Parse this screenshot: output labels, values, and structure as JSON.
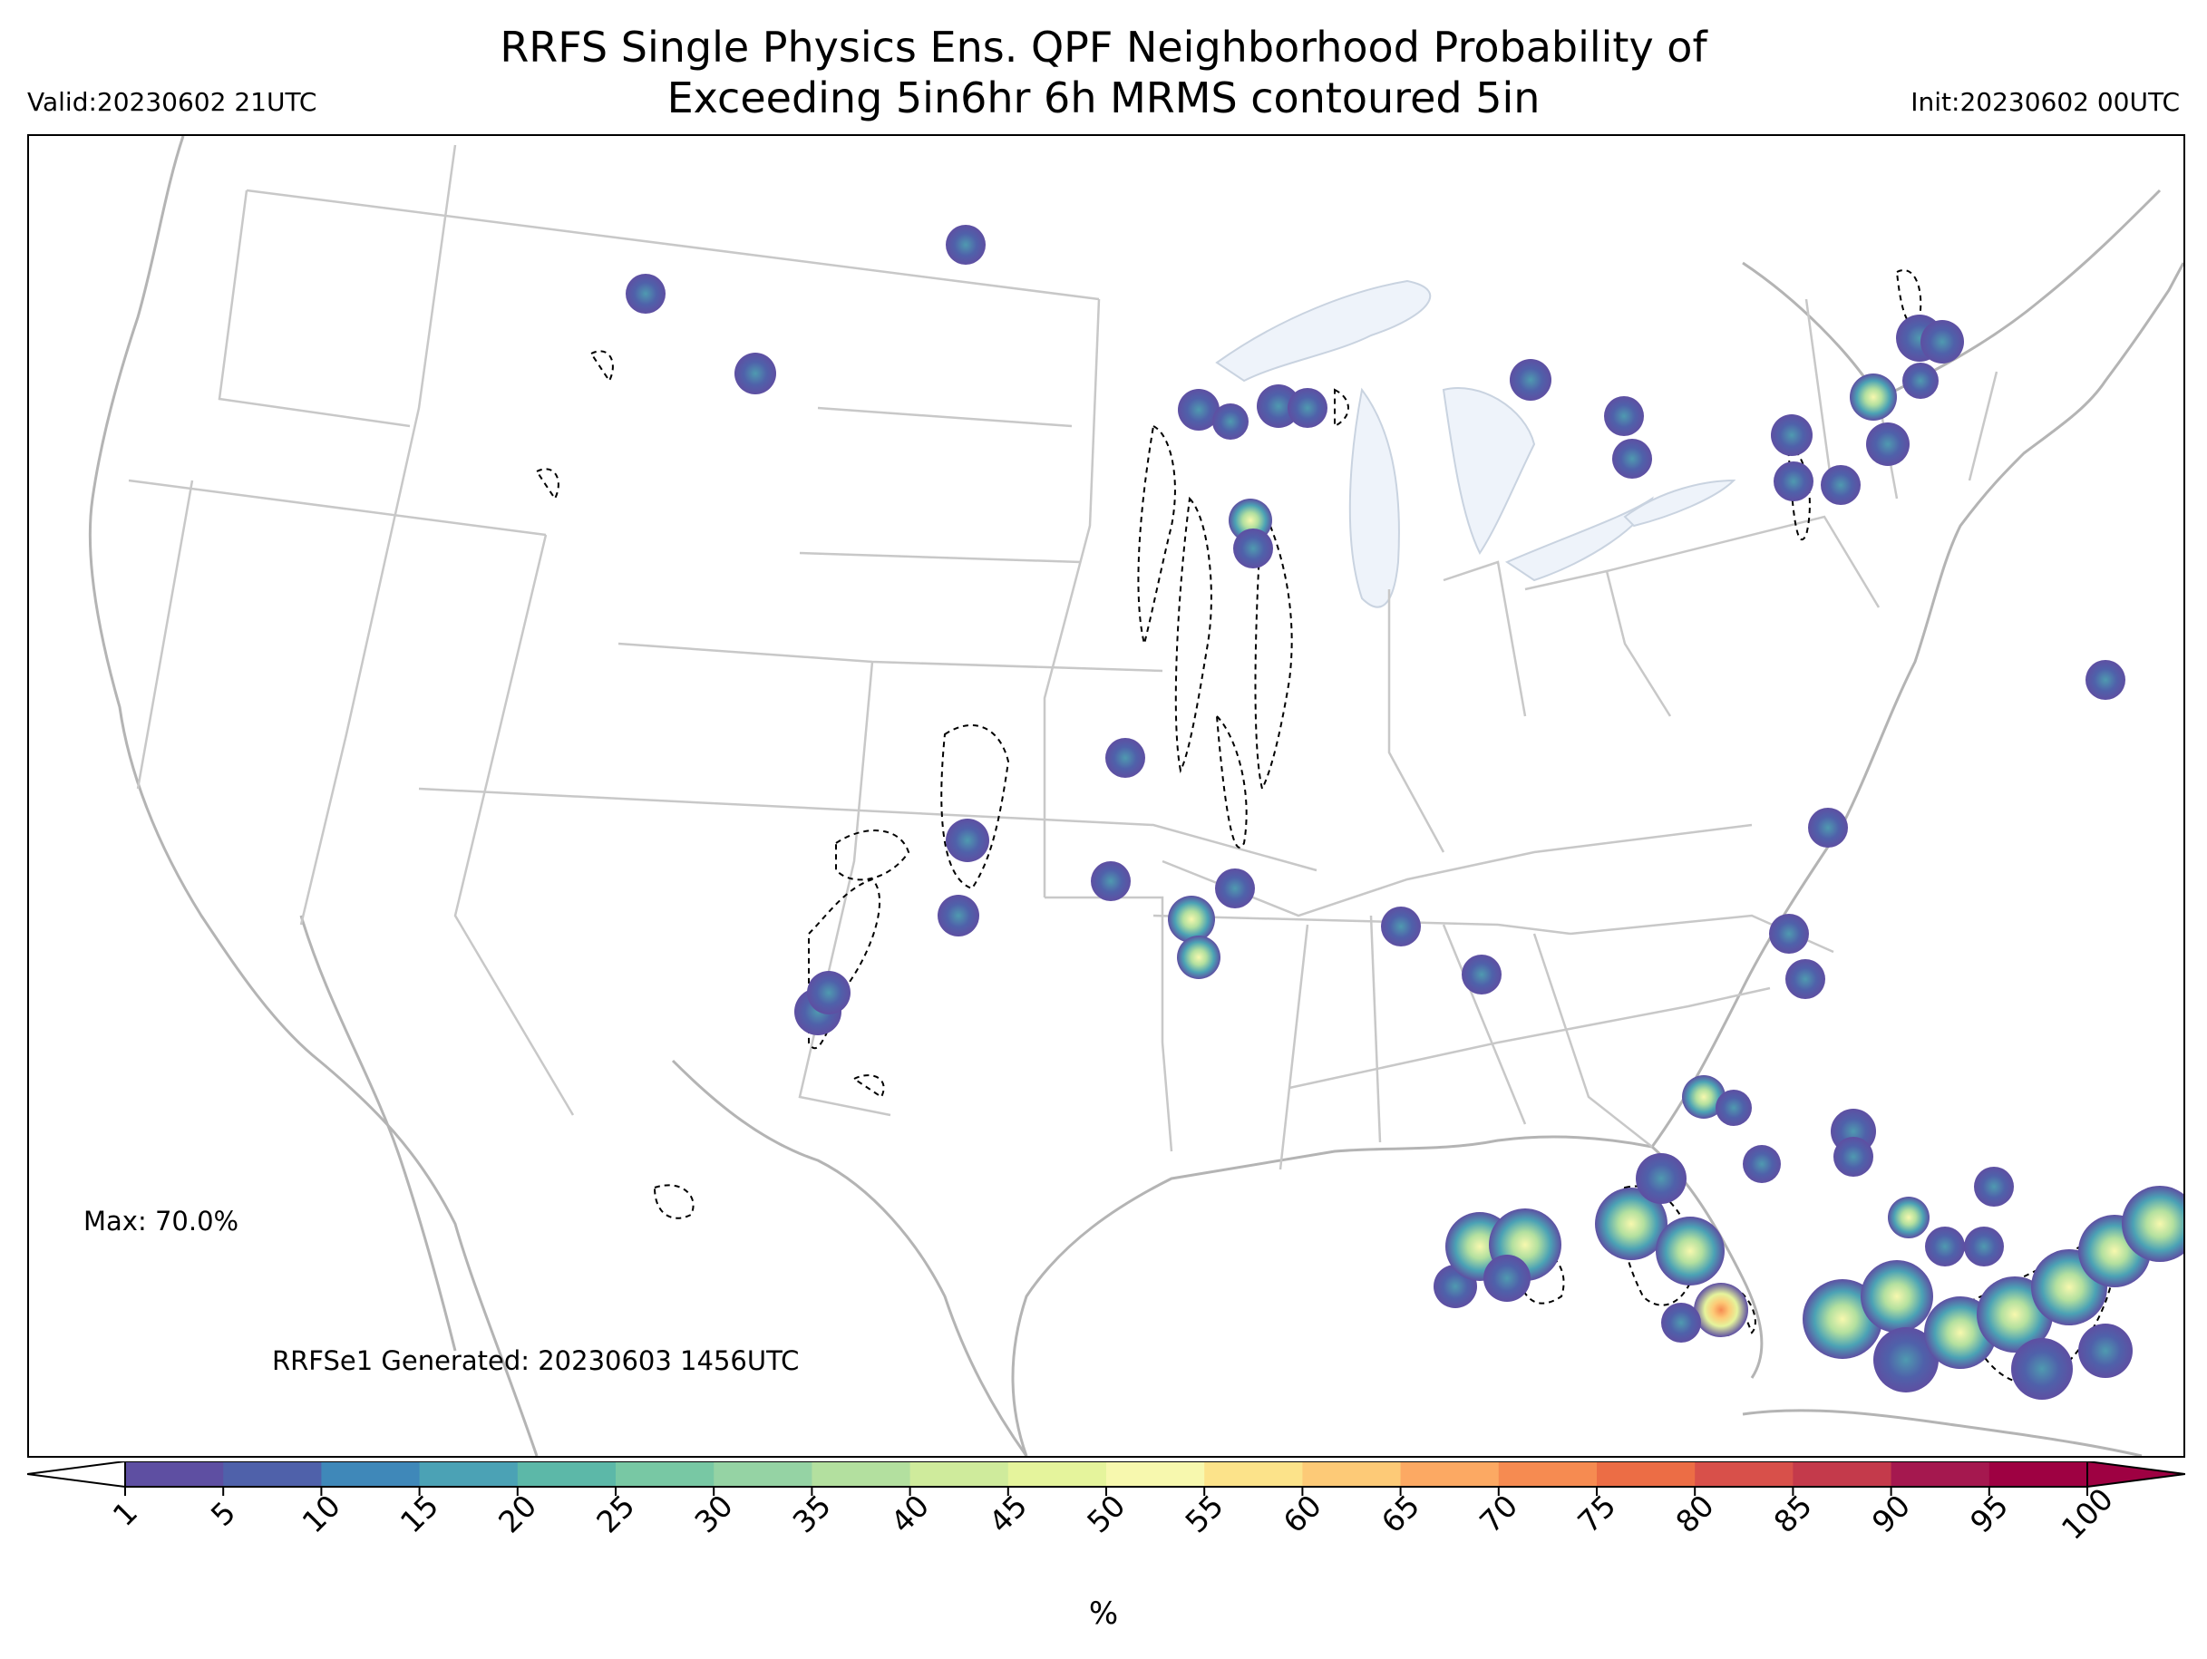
{
  "header": {
    "title_line1": "RRFS Single Physics Ens. QPF Neighborhood Probability of",
    "title_line2": "Exceeding 5in6hr 6h MRMS contoured 5in",
    "valid": "Valid:20230602 21UTC",
    "init": "Init:20230602 00UTC"
  },
  "annotations": {
    "max": "Max: 70.0%",
    "generated": "RRFSe1 Generated: 20230603 1456UTC"
  },
  "colorbar": {
    "unit": "%",
    "ticks": [
      "1",
      "5",
      "10",
      "15",
      "20",
      "25",
      "30",
      "35",
      "40",
      "45",
      "50",
      "55",
      "60",
      "65",
      "70",
      "75",
      "80",
      "85",
      "90",
      "95",
      "100"
    ],
    "colors": [
      "#5e4fa2",
      "#4f61aa",
      "#3f88b9",
      "#4ba2b5",
      "#5cb8a8",
      "#78c8a4",
      "#95d3a4",
      "#b3e09f",
      "#cfeb9c",
      "#e5f49c",
      "#f7f8ae",
      "#fce38a",
      "#fdca77",
      "#fca963",
      "#f68b51",
      "#ec6d45",
      "#d8504a",
      "#c43a4b",
      "#a5184f",
      "#9e0142"
    ]
  },
  "legend_colors": {
    "state_lines": "#c8c8c8",
    "coast_lines": "#b4b4b4",
    "lakes": "#eef3fa",
    "mrms_contour": "#000000"
  }
}
